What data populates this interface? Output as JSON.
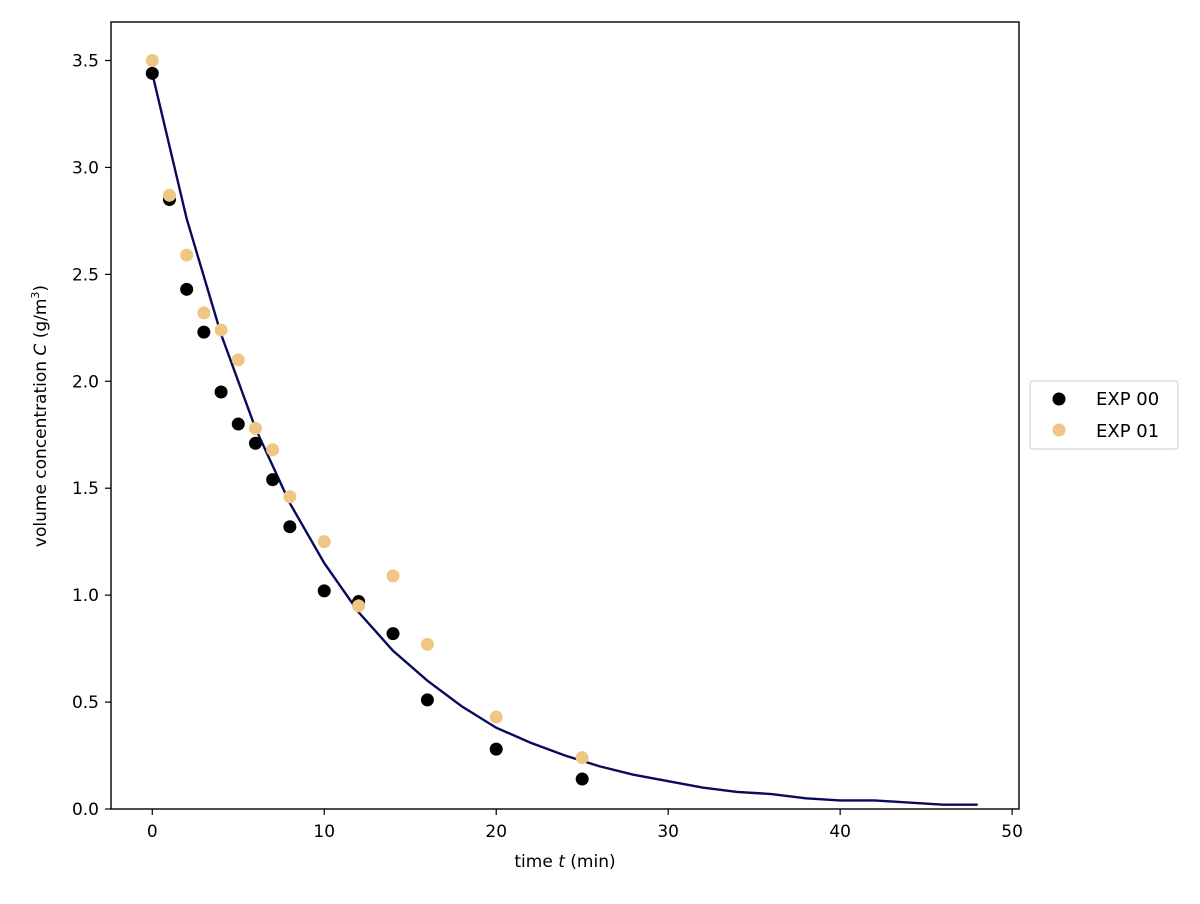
{
  "chart_data": {
    "type": "scatter",
    "title": "",
    "xlabel": {
      "prefix": "time ",
      "var": "t",
      "suffix": " (min)"
    },
    "ylabel": {
      "prefix": "volume concentration ",
      "var": "C",
      "suffix": " (g/m",
      "sup": "3",
      "close": ")"
    },
    "xlim": [
      -2.4,
      50.4
    ],
    "ylim": [
      0,
      3.68
    ],
    "xticks": [
      0,
      10,
      20,
      30,
      40,
      50
    ],
    "xtick_labels": [
      "0",
      "10",
      "20",
      "30",
      "40",
      "50"
    ],
    "yticks": [
      0.0,
      0.5,
      1.0,
      1.5,
      2.0,
      2.5,
      3.0,
      3.5
    ],
    "ytick_labels": [
      "0.0",
      "0.5",
      "1.0",
      "1.5",
      "2.0",
      "2.5",
      "3.0",
      "3.5"
    ],
    "grid": false,
    "legend_position": "right-outside-center",
    "series": [
      {
        "name": "EXP 00",
        "color": "#000000",
        "x": [
          0,
          1,
          2,
          3,
          4,
          5,
          6,
          7,
          8,
          10,
          12,
          14,
          16,
          20,
          25
        ],
        "y": [
          3.44,
          2.85,
          2.43,
          2.23,
          1.95,
          1.8,
          1.71,
          1.54,
          1.32,
          1.02,
          0.97,
          0.82,
          0.51,
          0.28,
          0.14
        ]
      },
      {
        "name": "EXP 01",
        "color": "#f0c684",
        "x": [
          0,
          1,
          2,
          3,
          4,
          5,
          6,
          7,
          8,
          10,
          12,
          14,
          16,
          20,
          25
        ],
        "y": [
          3.5,
          2.87,
          2.59,
          2.32,
          2.24,
          2.1,
          1.78,
          1.68,
          1.46,
          1.25,
          0.95,
          1.09,
          0.77,
          0.43,
          0.24
        ]
      }
    ],
    "fit_line": {
      "color": "#0a0a5c",
      "x": [
        0,
        2,
        4,
        6,
        8,
        10,
        12,
        14,
        16,
        18,
        20,
        22,
        24,
        26,
        28,
        30,
        32,
        34,
        36,
        38,
        40,
        42,
        44,
        46,
        48
      ],
      "y": [
        3.44,
        2.76,
        2.22,
        1.78,
        1.43,
        1.15,
        0.92,
        0.74,
        0.6,
        0.48,
        0.38,
        0.31,
        0.25,
        0.2,
        0.16,
        0.13,
        0.1,
        0.08,
        0.07,
        0.05,
        0.04,
        0.04,
        0.03,
        0.02,
        0.02
      ]
    }
  }
}
